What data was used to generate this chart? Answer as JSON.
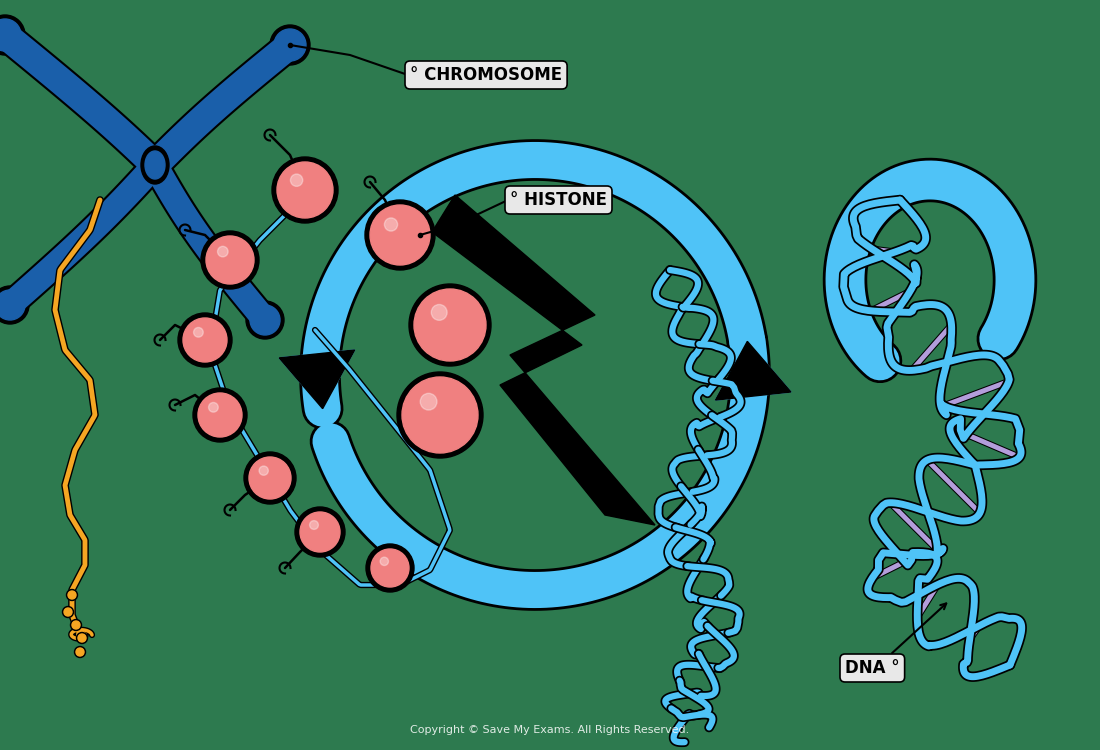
{
  "bg_color": "#2d7a4f",
  "chrom_blue": "#1a5faa",
  "teal": "#4fc3f7",
  "teal_dark": "#29b6f6",
  "histone_pink": "#f08080",
  "orange": "#f5a623",
  "purple": "#b39ddb",
  "black": "#111111",
  "white": "#ffffff",
  "label_bg": "#e8e8e8",
  "chromosome_label": "° CHROMOSOME",
  "histone_label": "° HISTONE",
  "dna_label": "DNA °",
  "copyright": "Copyright © Save My Exams. All Rights Reserved.",
  "label_font_size": 12,
  "copy_font_size": 8
}
